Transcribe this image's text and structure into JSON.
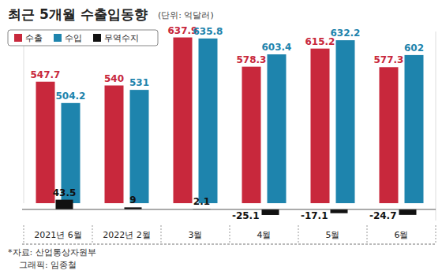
{
  "chart_data": {
    "type": "bar",
    "title": "최근 5개월 수출입동향",
    "subtitle": "(단위: 억달러)",
    "categories": [
      "2021년 6월",
      "2022년 2월",
      "3월",
      "4월",
      "5월",
      "6월"
    ],
    "series": [
      {
        "name": "수출",
        "color": "#c8283c",
        "values": [
          547.7,
          540,
          637.9,
          578.3,
          615.2,
          577.3
        ]
      },
      {
        "name": "수입",
        "color": "#1e84ad",
        "values": [
          504.2,
          531,
          635.8,
          603.4,
          632.2,
          602
        ]
      },
      {
        "name": "무역수지",
        "color": "#111111",
        "values": [
          43.5,
          9,
          2.1,
          -25.1,
          -17.1,
          -24.7
        ],
        "axis": "y2"
      }
    ],
    "ylim": [
      300,
      650
    ],
    "y2lim": [
      -50,
      800
    ],
    "data_labels": true,
    "tick_labels": "x",
    "legend": "top-left",
    "annotations": [
      "*자료: 산업통상자원부",
      "그래픽: 임종철"
    ]
  }
}
